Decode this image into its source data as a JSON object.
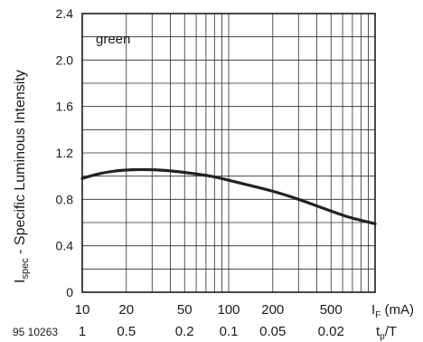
{
  "figure_id": "95 10263",
  "chart_data": {
    "type": "line",
    "title": "",
    "ylabel_main": "I",
    "ylabel_sub": "spec",
    "ylabel_rest": " - Specific Luminous Intensity",
    "xlabel_main": "I",
    "xlabel_sub": "F",
    "xlabel_rest": " (mA)",
    "x2label_main": "t",
    "x2label_sub": "p",
    "x2label_rest": "/T",
    "xscale": "log",
    "xlim": [
      10,
      1000
    ],
    "ylim": [
      0,
      2.4
    ],
    "grid": true,
    "yticks": [
      {
        "value": 0,
        "label": "0"
      },
      {
        "value": 0.4,
        "label": "0.4"
      },
      {
        "value": 0.8,
        "label": "0.8"
      },
      {
        "value": 1.2,
        "label": "1.2"
      },
      {
        "value": 1.6,
        "label": "1.6"
      },
      {
        "value": 2.0,
        "label": "2.0"
      },
      {
        "value": 2.4,
        "label": "2.4"
      }
    ],
    "xticks": [
      {
        "value": 10,
        "label": "10"
      },
      {
        "value": 20,
        "label": "20"
      },
      {
        "value": 50,
        "label": "50"
      },
      {
        "value": 100,
        "label": "100"
      },
      {
        "value": 200,
        "label": "200"
      },
      {
        "value": 500,
        "label": "500"
      }
    ],
    "x2ticks": [
      {
        "value": 10,
        "label": "1"
      },
      {
        "value": 20,
        "label": "0.5"
      },
      {
        "value": 50,
        "label": "0.2"
      },
      {
        "value": 100,
        "label": "0.1"
      },
      {
        "value": 200,
        "label": "0.05"
      },
      {
        "value": 500,
        "label": "0.02"
      }
    ],
    "series": [
      {
        "name": "green",
        "color": "#222222",
        "points": [
          {
            "x": 10,
            "y": 0.98
          },
          {
            "x": 13,
            "y": 1.02
          },
          {
            "x": 17,
            "y": 1.045
          },
          {
            "x": 22,
            "y": 1.055
          },
          {
            "x": 30,
            "y": 1.055
          },
          {
            "x": 40,
            "y": 1.045
          },
          {
            "x": 55,
            "y": 1.025
          },
          {
            "x": 75,
            "y": 1.0
          },
          {
            "x": 100,
            "y": 0.965
          },
          {
            "x": 150,
            "y": 0.91
          },
          {
            "x": 200,
            "y": 0.87
          },
          {
            "x": 300,
            "y": 0.8
          },
          {
            "x": 450,
            "y": 0.72
          },
          {
            "x": 650,
            "y": 0.65
          },
          {
            "x": 1000,
            "y": 0.59
          }
        ]
      }
    ]
  }
}
